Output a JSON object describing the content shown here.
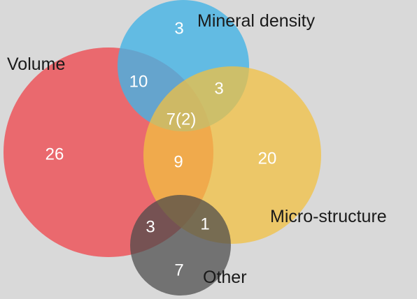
{
  "sets": [
    {
      "key": "volume",
      "label": "Volume",
      "color": "#ee4c52"
    },
    {
      "key": "mineral_density",
      "label": "Mineral density",
      "color": "#43b3e5"
    },
    {
      "key": "microstructure",
      "label": "Micro-structure",
      "color": "#f2c041"
    },
    {
      "key": "other",
      "label": "Other",
      "color": "#4a4a4a"
    }
  ],
  "regions": {
    "volume_only": "26",
    "mineral_only": "3",
    "micro_only": "20",
    "other_only": "7",
    "volume_mineral": "10",
    "mineral_micro": "3",
    "volume_mineral_micro": "7(2)",
    "volume_micro": "9",
    "volume_other": "3",
    "micro_other": "1"
  }
}
